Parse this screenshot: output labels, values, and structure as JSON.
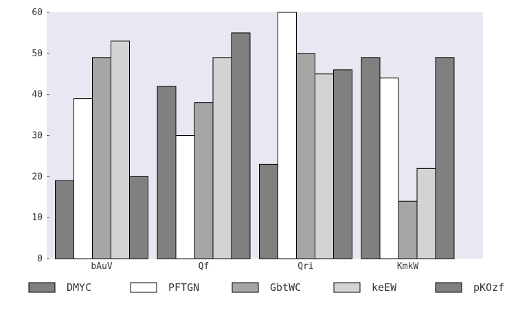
{
  "chart_data": {
    "type": "bar",
    "title": "",
    "xlabel": "",
    "ylabel": "",
    "categories": [
      "bAuV",
      "Qf",
      "Qri",
      "KmkW"
    ],
    "ylim": [
      0,
      60
    ],
    "yticks": [
      0,
      10,
      20,
      30,
      40,
      50,
      60
    ],
    "grid": false,
    "legend_position": "bottom",
    "background": "#e8e8f2",
    "series": [
      {
        "name": "DMYC",
        "color": "#808080",
        "values": [
          19,
          42,
          23,
          49
        ]
      },
      {
        "name": "PFTGN",
        "color": "#ffffff",
        "values": [
          39,
          30,
          60,
          44
        ]
      },
      {
        "name": "GbtWC",
        "color": "#a6a6a6",
        "values": [
          49,
          38,
          50,
          14
        ]
      },
      {
        "name": "keEW",
        "color": "#d3d3d3",
        "values": [
          53,
          49,
          45,
          22
        ]
      },
      {
        "name": "pKOzf",
        "color": "#808080",
        "values": [
          20,
          55,
          46,
          49
        ]
      }
    ]
  }
}
